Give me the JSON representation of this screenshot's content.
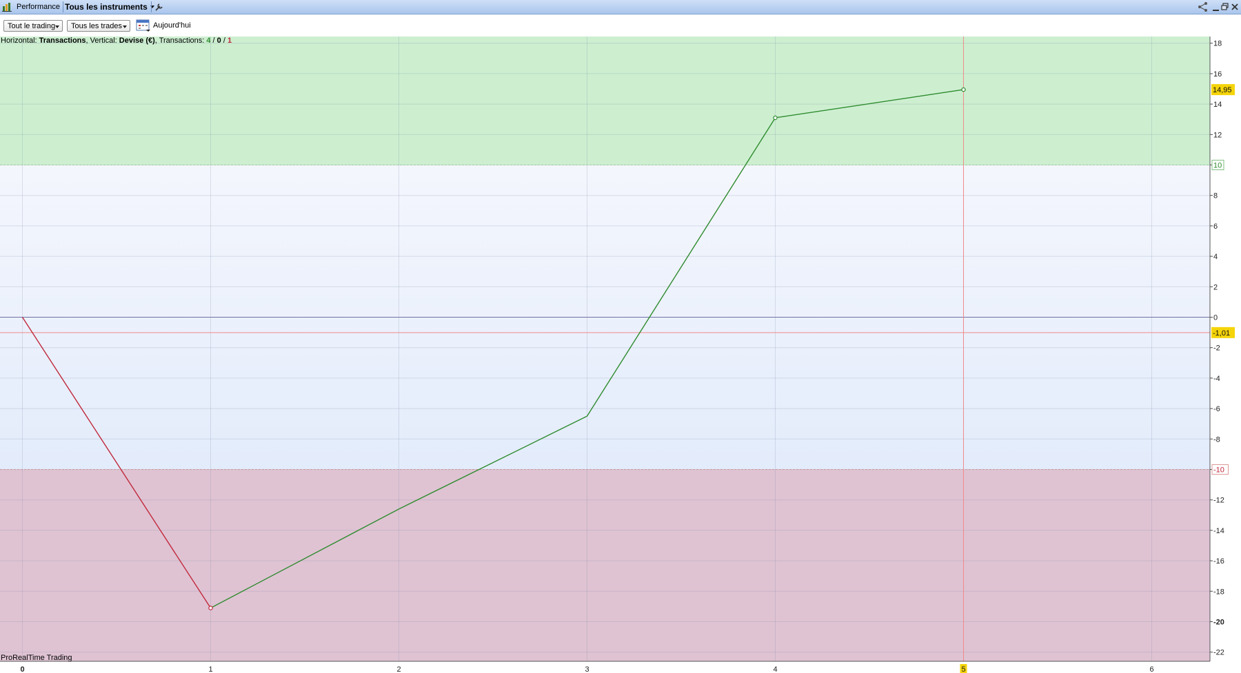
{
  "window": {
    "title": "Performance",
    "instrument_selector": "Tous les instruments"
  },
  "toolbar": {
    "trading_filter": "Tout le trading",
    "trades_filter": "Tous les trades",
    "date_label": "Aujourd'hui"
  },
  "info_bar": {
    "h_prefix": "Horizontal: ",
    "h_value": "Transactions",
    "v_prefix": ", Vertical: ",
    "v_value": "Devise (€)",
    "t_prefix": ", Transactions: ",
    "t_win": "4",
    "t_sep1": " / ",
    "t_neutral": "0",
    "t_sep2": " / ",
    "t_loss": "1"
  },
  "watermark": "ProRealTime Trading",
  "colors": {
    "gain_zone": "#cdefd0",
    "loss_zone": "#dfc3d3",
    "mid_zone_top": "#f4f6fd",
    "mid_zone_bottom": "#e3ecfb",
    "gain_line": "#2e8b2e",
    "loss_line": "#c0283a",
    "cursor_line": "#f08a8a",
    "zero_line": "#6f6f9f",
    "value_tag": "#f5d40a"
  },
  "chart_data": {
    "type": "line",
    "xlabel": "Transactions",
    "ylabel": "Devise (€)",
    "x": [
      0,
      1,
      2,
      3,
      4,
      5
    ],
    "y": [
      0,
      -19.1,
      -12.6,
      -6.5,
      13.1,
      14.95
    ],
    "xlim": [
      0,
      6.3
    ],
    "ylim": [
      -22.5,
      18.5
    ],
    "x_ticks": [
      "0",
      "1",
      "2",
      "3",
      "4",
      "5",
      "6"
    ],
    "y_ticks": [
      "18",
      "16",
      "14",
      "12",
      "10",
      "8",
      "6",
      "4",
      "2",
      "0",
      "-2",
      "-4",
      "-6",
      "-8",
      "-10",
      "-12",
      "-14",
      "-16",
      "-18",
      "-20",
      "-22"
    ],
    "gain_threshold": 10,
    "loss_threshold": -10,
    "last_value_label": "14,95",
    "average_line_value": -1.01,
    "average_line_label": "-1,01",
    "cursor_x": 5,
    "cursor_x_label": "5",
    "grid": true
  }
}
